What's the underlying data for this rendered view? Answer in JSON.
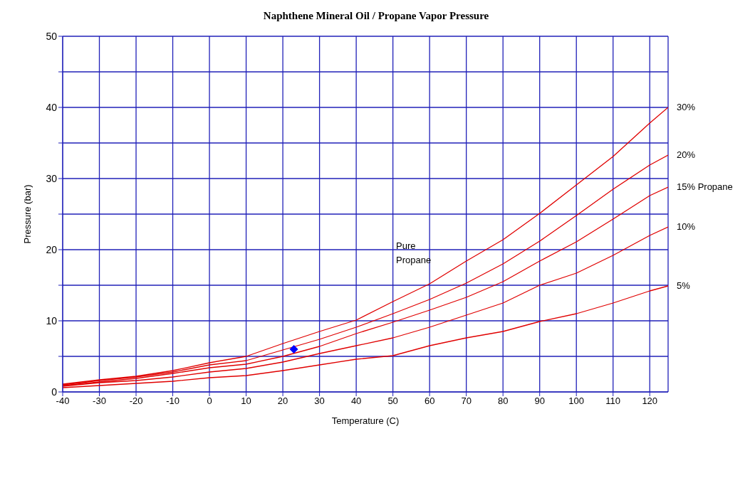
{
  "chart_data": {
    "type": "line",
    "title": "Naphthene Mineral Oil / Propane Vapor Pressure",
    "xlabel": "Temperature (C)",
    "ylabel": "Pressure (bar)",
    "x": [
      -40,
      -30,
      -20,
      -10,
      0,
      10,
      20,
      30,
      40,
      50,
      60,
      70,
      80,
      90,
      100,
      110,
      120,
      125
    ],
    "xlim": [
      -40,
      125
    ],
    "xticks": [
      -40,
      -30,
      -20,
      -10,
      0,
      10,
      20,
      30,
      40,
      50,
      60,
      70,
      80,
      90,
      100,
      110,
      120
    ],
    "ylim": [
      0,
      50
    ],
    "yticks": [
      0,
      {
        "value": 5,
        "label": null
      },
      10,
      {
        "value": 15,
        "label": null
      },
      20,
      {
        "value": 25,
        "label": null
      },
      30,
      {
        "value": 35,
        "label": null
      },
      40,
      {
        "value": 45,
        "label": null
      },
      50
    ],
    "grid": true,
    "marker": "none",
    "line_style": "solid",
    "annotations": [
      "Pure Propane"
    ],
    "series": [
      {
        "name": "30%",
        "color": "#e00000",
        "values": [
          1.1,
          1.7,
          2.2,
          3.0,
          4.1,
          5.0,
          6.8,
          8.5,
          10.1,
          12.7,
          15.2,
          18.4,
          21.4,
          25.1,
          29.1,
          33.1,
          37.8,
          40
        ]
      },
      {
        "name": "20%",
        "color": "#e00000",
        "values": [
          1.0,
          1.6,
          2.1,
          2.8,
          3.8,
          4.4,
          5.9,
          7.4,
          9.1,
          11.0,
          13.0,
          15.3,
          18.0,
          21.2,
          24.8,
          28.5,
          31.9,
          33.3
        ]
      },
      {
        "name": "15% Propane",
        "color": "#e00000",
        "values": [
          0.9,
          1.4,
          1.9,
          2.6,
          3.4,
          3.9,
          5.0,
          6.4,
          8.2,
          9.8,
          11.5,
          13.3,
          15.5,
          18.4,
          21.1,
          24.3,
          27.6,
          28.8
        ]
      },
      {
        "name": "10%",
        "color": "#e00000",
        "values": [
          0.8,
          1.3,
          1.6,
          2.1,
          2.8,
          3.3,
          4.2,
          5.4,
          6.5,
          7.6,
          9.1,
          10.8,
          12.5,
          15.0,
          16.7,
          19.2,
          22.0,
          23.2
        ]
      },
      {
        "name": "5%",
        "color": "#e00000",
        "values": [
          0.6,
          0.9,
          1.2,
          1.5,
          2.0,
          2.3,
          3.0,
          3.8,
          4.6,
          5.1,
          6.5,
          7.6,
          8.5,
          9.9,
          11.0,
          12.5,
          14.2,
          14.9
        ]
      },
      {
        "type": "scatter",
        "color": "#0000ff",
        "marker": "diamond",
        "x": [
          23
        ],
        "values": [
          6
        ]
      }
    ]
  }
}
